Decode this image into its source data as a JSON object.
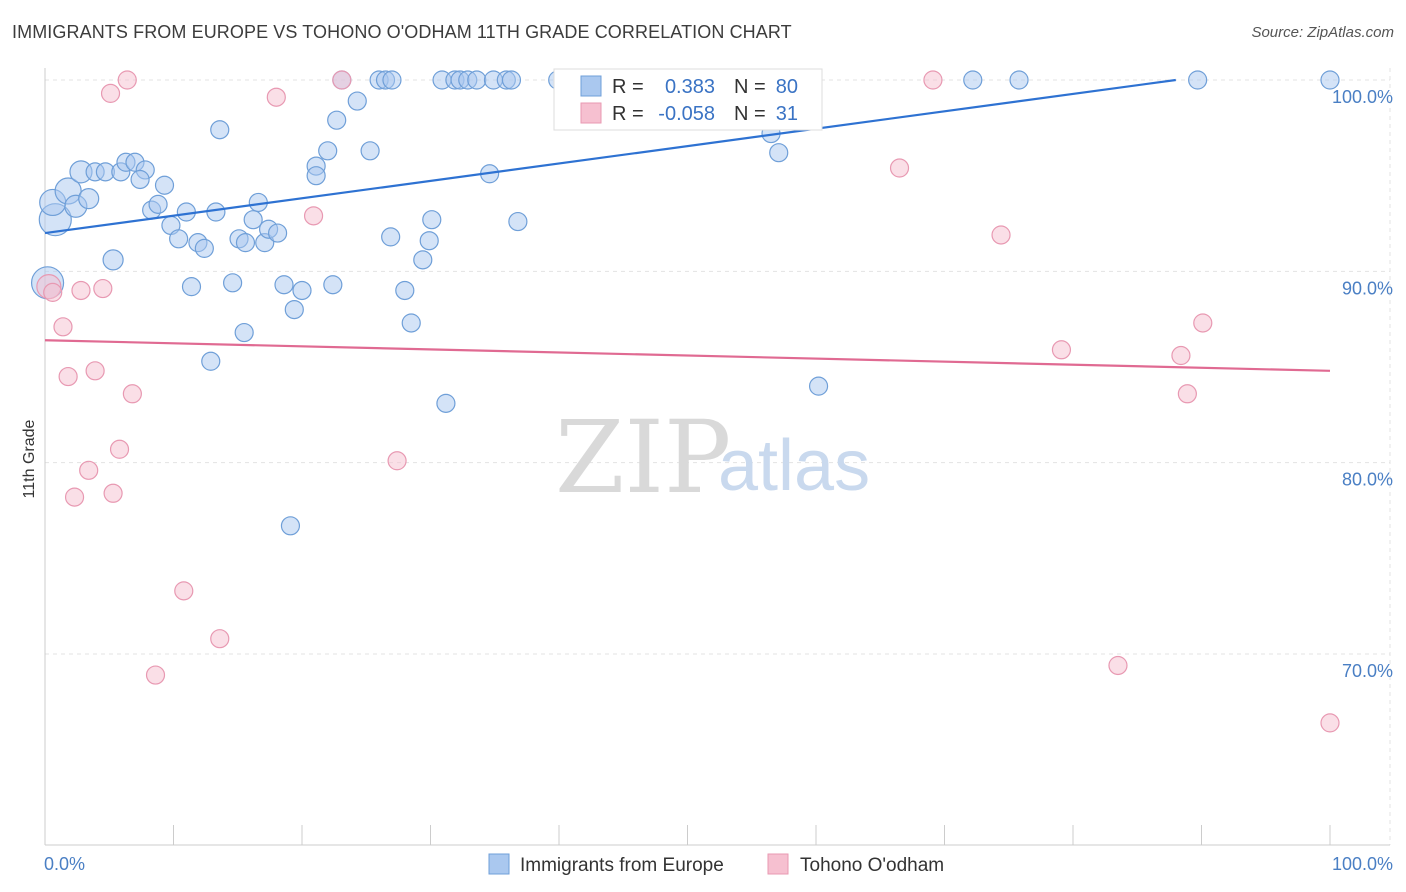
{
  "title": "IMMIGRANTS FROM EUROPE VS TOHONO O'ODHAM 11TH GRADE CORRELATION CHART",
  "source": "Source: ZipAtlas.com",
  "watermark": {
    "zip": "ZIP",
    "atlas": "atlas"
  },
  "colors": {
    "blue_fill": "#aac8ef",
    "blue_stroke": "#6f9fd8",
    "blue_line": "#2e72d2",
    "pink_fill": "#f6c0d0",
    "pink_stroke": "#e899b2",
    "pink_line": "#e06a92",
    "grid": "#e3e3e3",
    "axis": "#cccccc"
  },
  "legend": {
    "r_label": "R =",
    "n_label": "N =",
    "rows": [
      {
        "r": "0.383",
        "n": "80"
      },
      {
        "r": "-0.058",
        "n": "31"
      }
    ]
  },
  "chart_data": {
    "type": "scatter",
    "xlabel": "",
    "ylabel": "11th Grade",
    "xlim": [
      0,
      100
    ],
    "ylim": [
      60,
      101.5
    ],
    "x_tick_labels": [
      "0.0%",
      "100.0%"
    ],
    "y_ticks": [
      {
        "value": 70,
        "label": "70.0%"
      },
      {
        "value": 80,
        "label": "80.0%"
      },
      {
        "value": 90,
        "label": "90.0%"
      },
      {
        "value": 100,
        "label": "100.0%"
      }
    ],
    "grid": true,
    "legend_position": "top-center",
    "series": [
      {
        "name": "Immigrants from Europe",
        "color": "blue",
        "trend": {
          "x": [
            0,
            88
          ],
          "y": [
            92.0,
            100.0
          ]
        },
        "points": [
          [
            0.8,
            92.7,
            16
          ],
          [
            0.6,
            93.6,
            13
          ],
          [
            1.8,
            94.2,
            13
          ],
          [
            2.4,
            93.4,
            11
          ],
          [
            3.4,
            93.8,
            10
          ],
          [
            2.8,
            95.2,
            11
          ],
          [
            3.9,
            95.2,
            9
          ],
          [
            4.7,
            95.2,
            9
          ],
          [
            5.9,
            95.2,
            9
          ],
          [
            6.3,
            95.7,
            9
          ],
          [
            7.0,
            95.7,
            9
          ],
          [
            7.8,
            95.3,
            9
          ],
          [
            7.4,
            94.8,
            9
          ],
          [
            9.3,
            94.5,
            9
          ],
          [
            8.3,
            93.2,
            9
          ],
          [
            8.8,
            93.5,
            9
          ],
          [
            9.8,
            92.4,
            9
          ],
          [
            10.4,
            91.7,
            9
          ],
          [
            11.0,
            93.1,
            9
          ],
          [
            11.9,
            91.5,
            9
          ],
          [
            12.4,
            91.2,
            9
          ],
          [
            13.3,
            93.1,
            9
          ],
          [
            13.6,
            97.4,
            9
          ],
          [
            14.6,
            89.4,
            9
          ],
          [
            15.1,
            91.7,
            9
          ],
          [
            15.6,
            91.5,
            9
          ],
          [
            16.2,
            92.7,
            9
          ],
          [
            16.6,
            93.6,
            9
          ],
          [
            17.1,
            91.5,
            9
          ],
          [
            17.4,
            92.2,
            9
          ],
          [
            18.1,
            92.0,
            9
          ],
          [
            5.3,
            90.6,
            10
          ],
          [
            11.4,
            89.2,
            9
          ],
          [
            18.6,
            89.3,
            9
          ],
          [
            19.4,
            88.0,
            9
          ],
          [
            20.0,
            89.0,
            9
          ],
          [
            21.1,
            95.5,
            9
          ],
          [
            21.1,
            95.0,
            9
          ],
          [
            22.0,
            96.3,
            9
          ],
          [
            22.7,
            97.9,
            9
          ],
          [
            23.1,
            100.0,
            9
          ],
          [
            24.3,
            98.9,
            9
          ],
          [
            25.3,
            96.3,
            9
          ],
          [
            26.0,
            100.0,
            9
          ],
          [
            26.5,
            100.0,
            9
          ],
          [
            27.0,
            100.0,
            9
          ],
          [
            26.9,
            91.8,
            9
          ],
          [
            28.0,
            89.0,
            9
          ],
          [
            28.5,
            87.3,
            9
          ],
          [
            29.4,
            90.6,
            9
          ],
          [
            29.9,
            91.6,
            9
          ],
          [
            30.1,
            92.7,
            9
          ],
          [
            30.9,
            100.0,
            9
          ],
          [
            31.9,
            100.0,
            9
          ],
          [
            32.3,
            100.0,
            9
          ],
          [
            32.9,
            100.0,
            9
          ],
          [
            33.6,
            100.0,
            9
          ],
          [
            34.6,
            95.1,
            9
          ],
          [
            34.9,
            100.0,
            9
          ],
          [
            35.9,
            100.0,
            9
          ],
          [
            36.3,
            100.0,
            9
          ],
          [
            36.8,
            92.6,
            9
          ],
          [
            22.4,
            89.3,
            9
          ],
          [
            15.5,
            86.8,
            9
          ],
          [
            12.9,
            85.3,
            9
          ],
          [
            31.2,
            83.1,
            9
          ],
          [
            19.1,
            76.7,
            9
          ],
          [
            39.9,
            100.0,
            9
          ],
          [
            40.6,
            100.0,
            9
          ],
          [
            45.3,
            100.0,
            9
          ],
          [
            47.7,
            100.0,
            9
          ],
          [
            50.0,
            100.0,
            9
          ],
          [
            56.5,
            97.2,
            9
          ],
          [
            57.1,
            96.2,
            9
          ],
          [
            60.2,
            84.0,
            9
          ],
          [
            72.2,
            100.0,
            9
          ],
          [
            75.8,
            100.0,
            9
          ],
          [
            89.7,
            100.0,
            9
          ],
          [
            100.0,
            100.0,
            9
          ],
          [
            0.2,
            89.4,
            16
          ]
        ]
      },
      {
        "name": "Tohono O'odham",
        "color": "pink",
        "trend": {
          "x": [
            0,
            100
          ],
          "y": [
            86.4,
            84.8
          ]
        },
        "points": [
          [
            0.3,
            89.2,
            12
          ],
          [
            0.6,
            88.9,
            9
          ],
          [
            1.4,
            87.1,
            9
          ],
          [
            1.8,
            84.5,
            9
          ],
          [
            2.3,
            78.2,
            9
          ],
          [
            2.8,
            89.0,
            9
          ],
          [
            3.4,
            79.6,
            9
          ],
          [
            3.9,
            84.8,
            9
          ],
          [
            4.5,
            89.1,
            9
          ],
          [
            5.1,
            99.3,
            9
          ],
          [
            5.3,
            78.4,
            9
          ],
          [
            5.8,
            80.7,
            9
          ],
          [
            6.4,
            100.0,
            9
          ],
          [
            6.8,
            83.6,
            9
          ],
          [
            8.6,
            68.9,
            9
          ],
          [
            10.8,
            73.3,
            9
          ],
          [
            13.6,
            70.8,
            9
          ],
          [
            18.0,
            99.1,
            9
          ],
          [
            20.9,
            92.9,
            9
          ],
          [
            23.1,
            100.0,
            9
          ],
          [
            27.4,
            80.1,
            9
          ],
          [
            45.1,
            100.0,
            9
          ],
          [
            66.5,
            95.4,
            9
          ],
          [
            69.1,
            100.0,
            9
          ],
          [
            74.4,
            91.9,
            9
          ],
          [
            79.1,
            85.9,
            9
          ],
          [
            83.5,
            69.4,
            9
          ],
          [
            88.4,
            85.6,
            9
          ],
          [
            88.9,
            83.6,
            9
          ],
          [
            90.1,
            87.3,
            9
          ],
          [
            100.0,
            66.4,
            9
          ]
        ]
      }
    ]
  }
}
